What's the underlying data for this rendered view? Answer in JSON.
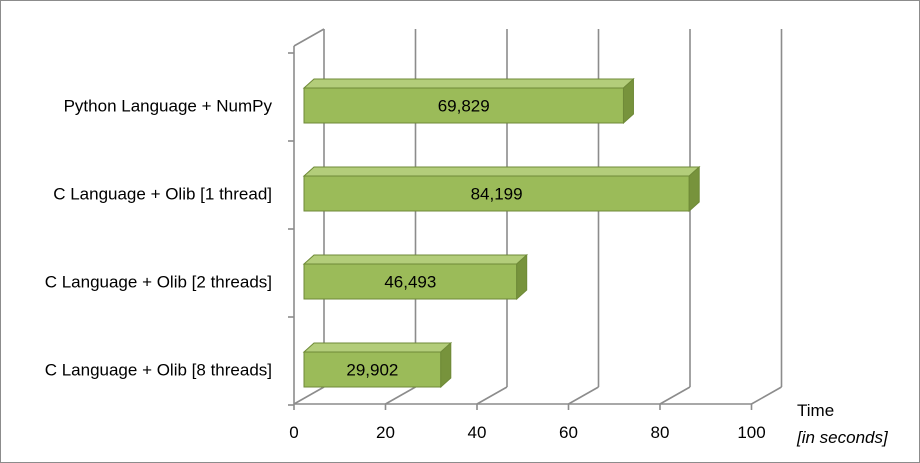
{
  "chart_data": {
    "type": "bar",
    "orientation": "horizontal",
    "style": "3d",
    "categories": [
      "Python Language + NumPy",
      "C Language + Olib [1 thread]",
      "C Language + Olib [2 threads]",
      "C Language + Olib [8 threads]"
    ],
    "values": [
      69.829,
      84.199,
      46.493,
      29.902
    ],
    "data_labels": [
      "69,829",
      "84,199",
      "46,493",
      "29,902"
    ],
    "xaxis": {
      "title": "Time",
      "subtitle": "[in seconds]",
      "ticks": [
        0,
        20,
        40,
        60,
        80,
        100
      ],
      "tick_labels": [
        "0",
        "20",
        "40",
        "60",
        "80",
        "100"
      ],
      "range": [
        0,
        100
      ]
    },
    "grid": true,
    "legend": "none",
    "colors": {
      "bar_front": "#9bbb59",
      "bar_top": "#b3cd7a",
      "bar_side": "#77933c",
      "bar_edge": "#6f8a38",
      "grid": "#8c8c8c"
    }
  }
}
